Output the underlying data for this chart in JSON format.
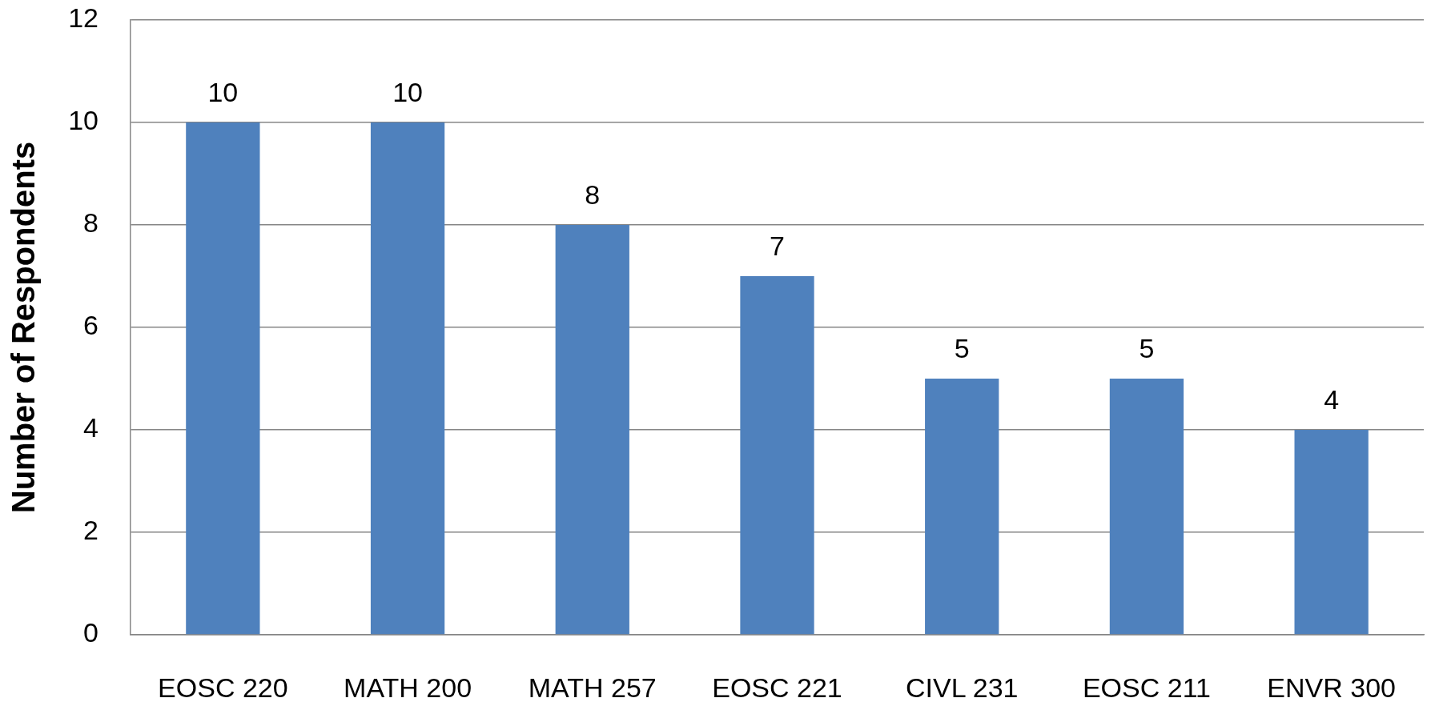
{
  "chart_data": {
    "type": "bar",
    "ylabel": "Number of Respondents",
    "categories": [
      "EOSC 220",
      "MATH 200",
      "MATH 257",
      "EOSC 221",
      "CIVL 231",
      "EOSC 211",
      "ENVR 300"
    ],
    "values": [
      10,
      10,
      8,
      7,
      5,
      5,
      4
    ],
    "color": "#4f81bd",
    "ylim": [
      0,
      12
    ],
    "yticks": [
      0,
      2,
      4,
      6,
      8,
      10,
      12
    ],
    "grid": "y",
    "data_labels": true
  }
}
